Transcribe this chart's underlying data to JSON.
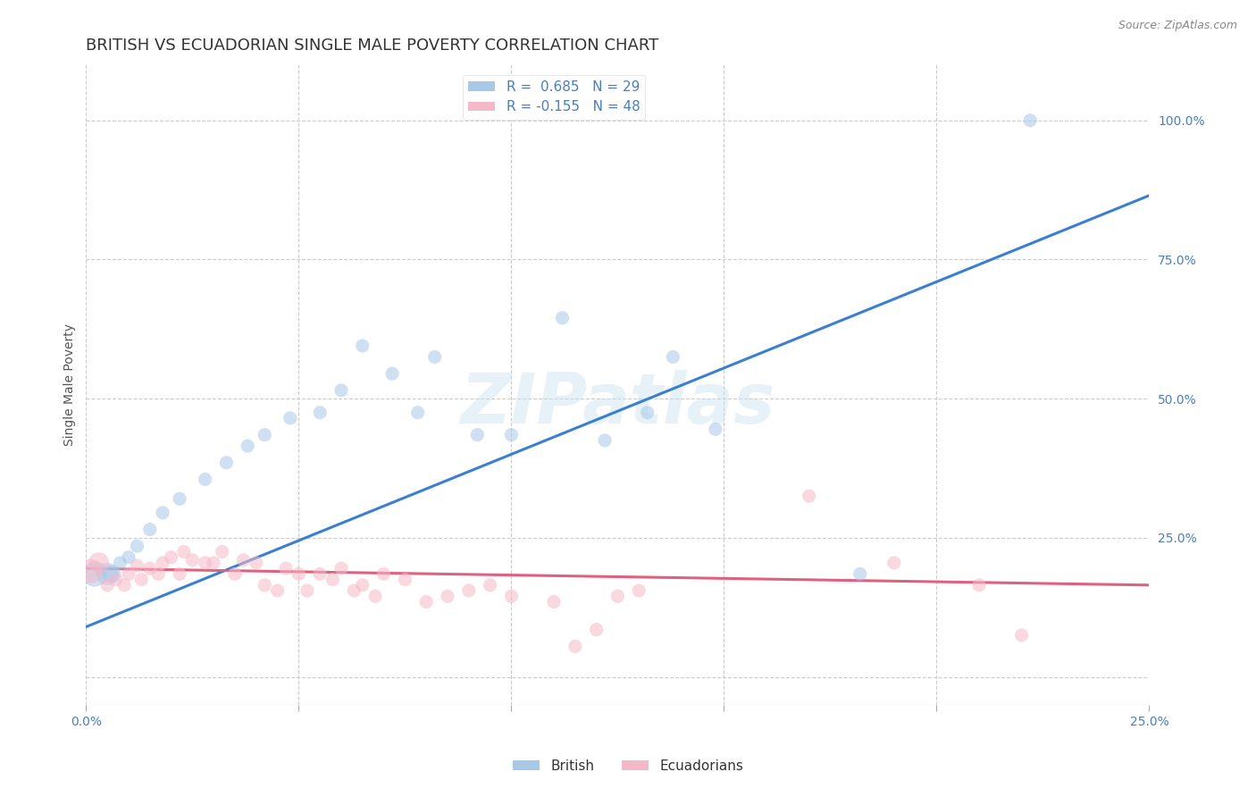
{
  "title": "BRITISH VS ECUADORIAN SINGLE MALE POVERTY CORRELATION CHART",
  "source_text": "Source: ZipAtlas.com",
  "ylabel": "Single Male Poverty",
  "xlim": [
    0.0,
    0.25
  ],
  "ylim": [
    -0.05,
    1.1
  ],
  "x_ticks": [
    0.0,
    0.05,
    0.1,
    0.15,
    0.2,
    0.25
  ],
  "y_ticks_right": [
    0.0,
    0.25,
    0.5,
    0.75,
    1.0
  ],
  "british_R": 0.685,
  "british_N": 29,
  "ecuadorian_R": -0.155,
  "ecuadorian_N": 48,
  "british_color": "#a8c8e8",
  "ecuadorian_color": "#f5b8c8",
  "british_line_color": "#3a7fd0",
  "ecuadorian_line_color": "#e06080",
  "legend_british_label": "British",
  "legend_ecuadorian_label": "Ecuadorians",
  "watermark": "ZIPatlas",
  "british_scatter": [
    [
      0.002,
      0.185
    ],
    [
      0.005,
      0.185
    ],
    [
      0.006,
      0.185
    ],
    [
      0.008,
      0.205
    ],
    [
      0.01,
      0.215
    ],
    [
      0.012,
      0.235
    ],
    [
      0.015,
      0.265
    ],
    [
      0.018,
      0.295
    ],
    [
      0.022,
      0.32
    ],
    [
      0.028,
      0.355
    ],
    [
      0.033,
      0.385
    ],
    [
      0.038,
      0.415
    ],
    [
      0.042,
      0.435
    ],
    [
      0.048,
      0.465
    ],
    [
      0.055,
      0.475
    ],
    [
      0.06,
      0.515
    ],
    [
      0.065,
      0.595
    ],
    [
      0.072,
      0.545
    ],
    [
      0.078,
      0.475
    ],
    [
      0.082,
      0.575
    ],
    [
      0.092,
      0.435
    ],
    [
      0.1,
      0.435
    ],
    [
      0.112,
      0.645
    ],
    [
      0.122,
      0.425
    ],
    [
      0.132,
      0.475
    ],
    [
      0.138,
      0.575
    ],
    [
      0.148,
      0.445
    ],
    [
      0.182,
      0.185
    ],
    [
      0.222,
      1.0
    ]
  ],
  "ecuadorian_scatter": [
    [
      0.001,
      0.19
    ],
    [
      0.003,
      0.205
    ],
    [
      0.005,
      0.165
    ],
    [
      0.007,
      0.175
    ],
    [
      0.009,
      0.165
    ],
    [
      0.01,
      0.185
    ],
    [
      0.012,
      0.2
    ],
    [
      0.013,
      0.175
    ],
    [
      0.015,
      0.195
    ],
    [
      0.017,
      0.185
    ],
    [
      0.018,
      0.205
    ],
    [
      0.02,
      0.215
    ],
    [
      0.022,
      0.185
    ],
    [
      0.023,
      0.225
    ],
    [
      0.025,
      0.21
    ],
    [
      0.028,
      0.205
    ],
    [
      0.03,
      0.205
    ],
    [
      0.032,
      0.225
    ],
    [
      0.035,
      0.185
    ],
    [
      0.037,
      0.21
    ],
    [
      0.04,
      0.205
    ],
    [
      0.042,
      0.165
    ],
    [
      0.045,
      0.155
    ],
    [
      0.047,
      0.195
    ],
    [
      0.05,
      0.185
    ],
    [
      0.052,
      0.155
    ],
    [
      0.055,
      0.185
    ],
    [
      0.058,
      0.175
    ],
    [
      0.06,
      0.195
    ],
    [
      0.063,
      0.155
    ],
    [
      0.065,
      0.165
    ],
    [
      0.068,
      0.145
    ],
    [
      0.07,
      0.185
    ],
    [
      0.075,
      0.175
    ],
    [
      0.08,
      0.135
    ],
    [
      0.085,
      0.145
    ],
    [
      0.09,
      0.155
    ],
    [
      0.095,
      0.165
    ],
    [
      0.1,
      0.145
    ],
    [
      0.11,
      0.135
    ],
    [
      0.115,
      0.055
    ],
    [
      0.12,
      0.085
    ],
    [
      0.125,
      0.145
    ],
    [
      0.13,
      0.155
    ],
    [
      0.17,
      0.325
    ],
    [
      0.19,
      0.205
    ],
    [
      0.21,
      0.165
    ],
    [
      0.22,
      0.075
    ]
  ],
  "british_trendline": [
    [
      0.0,
      0.09
    ],
    [
      0.25,
      0.865
    ]
  ],
  "ecuadorian_trendline": [
    [
      0.0,
      0.195
    ],
    [
      0.25,
      0.165
    ]
  ],
  "background_color": "#ffffff",
  "grid_color": "#cccccc",
  "title_fontsize": 13,
  "axis_label_fontsize": 10,
  "tick_fontsize": 10,
  "legend_fontsize": 11,
  "dot_size": 120,
  "dot_alpha": 0.55
}
